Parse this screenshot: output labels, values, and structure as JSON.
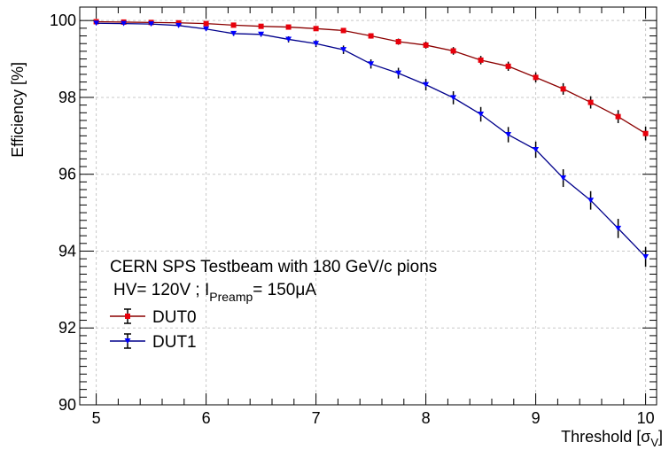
{
  "chart_data": {
    "type": "line",
    "title": "",
    "xlabel": "Threshold [σ",
    "xlabel_sub": "V",
    "xlabel_close": "]",
    "ylabel": "Efficiency [%]",
    "xlim": [
      4.85,
      10.1
    ],
    "ylim": [
      90,
      100.35
    ],
    "xticks": [
      5,
      6,
      7,
      8,
      9,
      10
    ],
    "yticks": [
      90,
      92,
      94,
      96,
      98,
      100
    ],
    "grid": true,
    "annotations": {
      "line1": "CERN SPS Testbeam with 180 GeV/c pions",
      "line2_prefix": "HV= 120V ; I",
      "line2_sub": "Preamp",
      "line2_suffix": "= 150μA"
    },
    "legend_position": "bottom-left",
    "x": [
      5,
      5.25,
      5.5,
      5.75,
      6,
      6.25,
      6.5,
      6.75,
      7,
      7.25,
      7.5,
      7.75,
      8,
      8.25,
      8.5,
      8.75,
      9,
      9.25,
      9.5,
      9.75,
      10
    ],
    "series": [
      {
        "name": "DUT0",
        "color": "#8b0000",
        "marker_color": "#e8000b",
        "marker": "square",
        "values": [
          99.97,
          99.96,
          99.95,
          99.94,
          99.92,
          99.88,
          99.85,
          99.83,
          99.79,
          99.74,
          99.6,
          99.45,
          99.36,
          99.21,
          98.97,
          98.81,
          98.52,
          98.22,
          97.87,
          97.5,
          97.06
        ],
        "errors": [
          0.02,
          0.02,
          0.02,
          0.02,
          0.03,
          0.03,
          0.03,
          0.04,
          0.04,
          0.05,
          0.07,
          0.08,
          0.09,
          0.1,
          0.11,
          0.12,
          0.13,
          0.15,
          0.16,
          0.17,
          0.18
        ]
      },
      {
        "name": "DUT1",
        "color": "#00008b",
        "marker_color": "#0000ff",
        "marker": "triangle-down",
        "values": [
          99.93,
          99.92,
          99.91,
          99.87,
          99.78,
          99.66,
          99.64,
          99.51,
          99.4,
          99.24,
          98.87,
          98.63,
          98.33,
          97.99,
          97.56,
          97.03,
          96.64,
          95.9,
          95.32,
          94.59,
          93.85
        ],
        "errors": [
          0.02,
          0.02,
          0.03,
          0.04,
          0.05,
          0.06,
          0.06,
          0.08,
          0.09,
          0.11,
          0.12,
          0.14,
          0.15,
          0.17,
          0.19,
          0.2,
          0.21,
          0.23,
          0.24,
          0.25,
          0.26
        ]
      }
    ]
  }
}
